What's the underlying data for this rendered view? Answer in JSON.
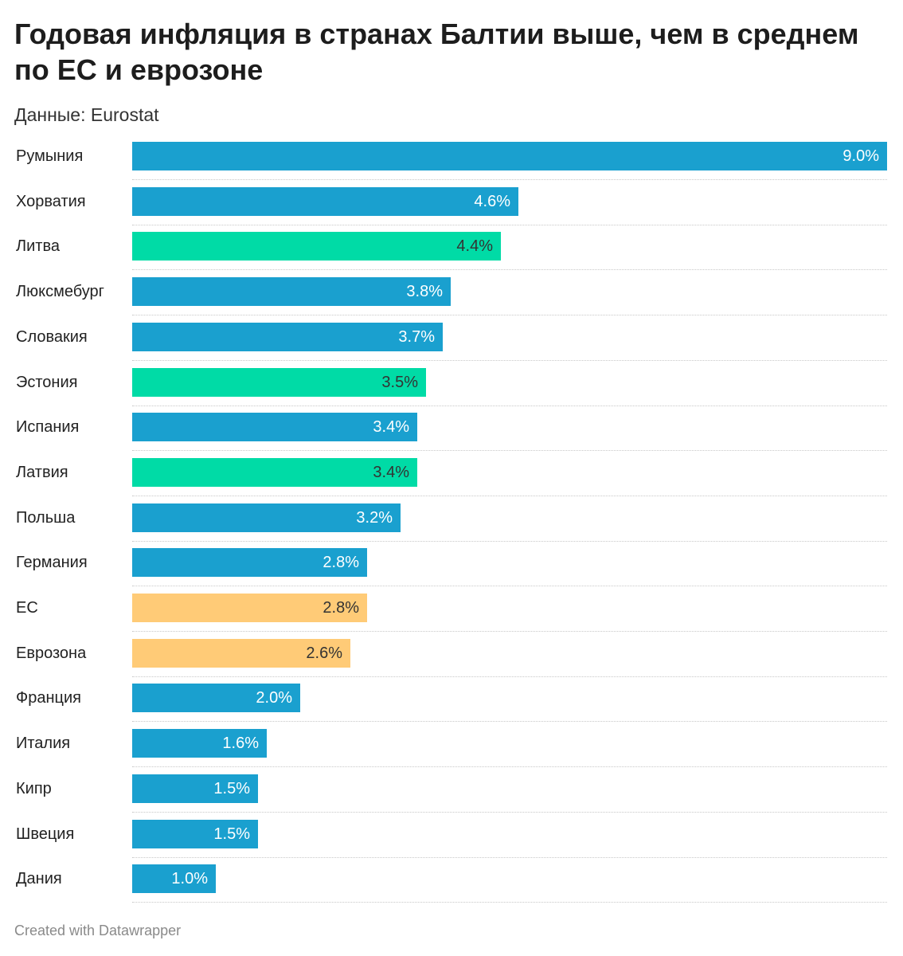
{
  "header": {
    "title": "Годовая инфляция в странах Балтии выше, чем в среднем по ЕС и еврозоне",
    "subtitle": "Данные: Eurostat"
  },
  "footer": {
    "credit": "Created with Datawrapper"
  },
  "colors": {
    "default": "#1aa0cf",
    "baltic": "#00dba6",
    "aggregate": "#ffcb77",
    "label_light": "#ffffff",
    "label_dark": "#333333"
  },
  "chart_data": {
    "type": "bar",
    "orientation": "horizontal",
    "title": "Годовая инфляция в странах Балтии выше, чем в среднем по ЕС и еврозоне",
    "source": "Данные: Eurostat",
    "xlim": [
      0,
      9.0
    ],
    "unit": "%",
    "categories": [
      "Румыния",
      "Хорватия",
      "Литва",
      "Люксмебург",
      "Словакия",
      "Эстония",
      "Испания",
      "Латвия",
      "Польша",
      "Германия",
      "ЕС",
      "Еврозона",
      "Франция",
      "Италия",
      "Кипр",
      "Швеция",
      "Дания"
    ],
    "values": [
      9.0,
      4.6,
      4.4,
      3.8,
      3.7,
      3.5,
      3.4,
      3.4,
      3.2,
      2.8,
      2.8,
      2.6,
      2.0,
      1.6,
      1.5,
      1.5,
      1.0
    ],
    "labels": [
      "9.0%",
      "4.6%",
      "4.4%",
      "3.8%",
      "3.7%",
      "3.5%",
      "3.4%",
      "3.4%",
      "3.2%",
      "2.8%",
      "2.8%",
      "2.6%",
      "2.0%",
      "1.6%",
      "1.5%",
      "1.5%",
      "1.0%"
    ],
    "groups": [
      "default",
      "default",
      "baltic",
      "default",
      "default",
      "baltic",
      "default",
      "baltic",
      "default",
      "default",
      "aggregate",
      "aggregate",
      "default",
      "default",
      "default",
      "default",
      "default"
    ]
  }
}
